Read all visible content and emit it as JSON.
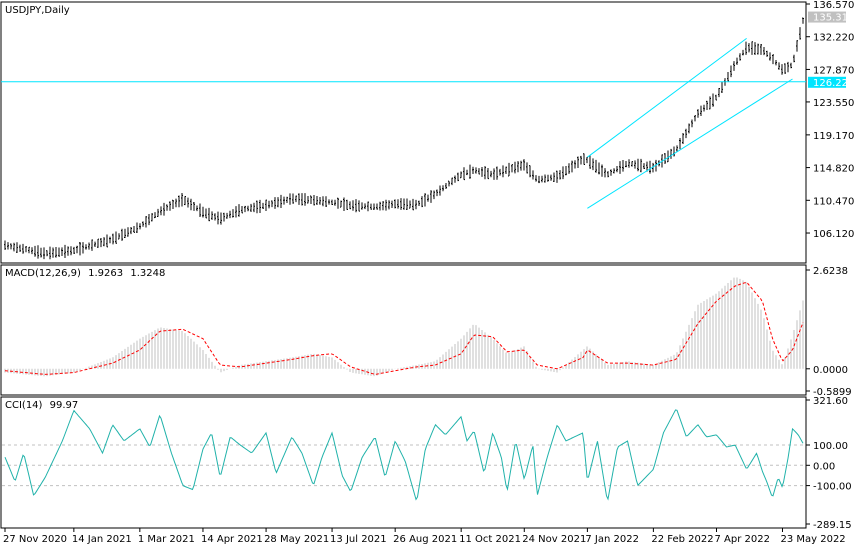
{
  "colors": {
    "background": "#ffffff",
    "frame": "#000000",
    "bar": "#000000",
    "hline": "#00e5ff",
    "channel": "#00e5ff",
    "price_label_bg": "#c0c0c0",
    "price_label_text": "#ffffff",
    "hline_label_bg": "#00e5ff",
    "macd_hist": "#c0c0c0",
    "macd_signal": "#ff0000",
    "cci_line": "#20b2aa",
    "cci_levels": "#c0c0c0"
  },
  "chart_data": [
    {
      "type": "line",
      "panel": "price",
      "title": "USDJPY,Daily",
      "symbol": "USDJPY",
      "timeframe": "Daily",
      "last_price_label": "135.312",
      "hline_label": "126.227",
      "hline_value": 126.227,
      "ylim": [
        102.4,
        136.57
      ],
      "yticks": [
        {
          "value": 136.57,
          "label": "136.570"
        },
        {
          "value": 132.22,
          "label": "132.220"
        },
        {
          "value": 127.87,
          "label": "127.870"
        },
        {
          "value": 123.55,
          "label": "123.550"
        },
        {
          "value": 119.17,
          "label": "119.170"
        },
        {
          "value": 114.82,
          "label": "114.820"
        },
        {
          "value": 110.47,
          "label": "110.470"
        },
        {
          "value": 106.12,
          "label": "106.120"
        }
      ],
      "x": [
        "2020-11-27",
        "2020-12-10",
        "2020-12-25",
        "2021-01-14",
        "2021-02-10",
        "2021-03-01",
        "2021-03-15",
        "2021-03-31",
        "2021-04-14",
        "2021-04-26",
        "2021-05-10",
        "2021-05-28",
        "2021-06-15",
        "2021-06-30",
        "2021-07-13",
        "2021-07-26",
        "2021-08-12",
        "2021-08-26",
        "2021-09-10",
        "2021-09-23",
        "2021-10-11",
        "2021-10-20",
        "2021-11-02",
        "2021-11-12",
        "2021-11-24",
        "2021-12-03",
        "2021-12-17",
        "2022-01-04",
        "2022-01-07",
        "2022-01-21",
        "2022-02-04",
        "2022-02-22",
        "2022-03-10",
        "2022-03-25",
        "2022-04-07",
        "2022-04-20",
        "2022-04-28",
        "2022-05-09",
        "2022-05-16",
        "2022-05-23",
        "2022-05-30",
        "2022-06-07"
      ],
      "values": [
        104.5,
        104.0,
        103.4,
        103.8,
        105.3,
        107.0,
        109.0,
        110.6,
        108.9,
        108.0,
        109.2,
        109.8,
        110.7,
        110.5,
        110.2,
        109.8,
        109.6,
        110.0,
        109.9,
        111.3,
        113.9,
        114.5,
        113.9,
        114.5,
        115.2,
        113.2,
        113.6,
        116.0,
        115.8,
        113.9,
        115.4,
        114.8,
        117.2,
        122.0,
        124.2,
        128.6,
        130.8,
        130.5,
        129.3,
        127.8,
        128.5,
        134.9
      ],
      "hline": 126.227,
      "channel": {
        "upper": {
          "from": [
            "2022-01-07",
            116.2
          ],
          "to": [
            "2022-04-28",
            132.0
          ]
        },
        "lower": {
          "from": [
            "2022-01-07",
            109.4
          ],
          "to": [
            "2022-05-30",
            126.6
          ]
        }
      }
    },
    {
      "type": "bar",
      "panel": "macd",
      "title": "MACD(12,26,9)",
      "macd_value": "1.9263",
      "signal_value": "1.3248",
      "ylim": [
        -0.5899,
        2.6238
      ],
      "yticks": [
        {
          "value": 2.6238,
          "label": "2.6238"
        },
        {
          "value": 0.0,
          "label": "0.0000"
        },
        {
          "value": -0.5899,
          "label": "-0.5899"
        }
      ],
      "x": [
        "2020-11-27",
        "2020-12-25",
        "2021-01-14",
        "2021-02-10",
        "2021-03-01",
        "2021-03-15",
        "2021-03-31",
        "2021-04-14",
        "2021-04-26",
        "2021-05-10",
        "2021-05-28",
        "2021-06-15",
        "2021-06-30",
        "2021-07-13",
        "2021-07-26",
        "2021-08-12",
        "2021-08-26",
        "2021-09-10",
        "2021-09-23",
        "2021-10-11",
        "2021-10-20",
        "2021-11-02",
        "2021-11-12",
        "2021-11-24",
        "2021-12-03",
        "2021-12-17",
        "2022-01-04",
        "2022-01-07",
        "2022-01-21",
        "2022-02-04",
        "2022-02-22",
        "2022-03-10",
        "2022-03-25",
        "2022-04-07",
        "2022-04-20",
        "2022-04-28",
        "2022-05-09",
        "2022-05-16",
        "2022-05-23",
        "2022-05-30",
        "2022-06-07"
      ],
      "series": [
        {
          "kind": "histogram",
          "values": [
            -0.1,
            -0.2,
            -0.1,
            0.3,
            0.8,
            1.1,
            1.0,
            0.5,
            -0.1,
            0.1,
            0.2,
            0.3,
            0.4,
            0.3,
            -0.1,
            -0.2,
            0.0,
            0.1,
            0.2,
            0.8,
            1.2,
            0.8,
            0.4,
            0.6,
            0.0,
            -0.1,
            0.5,
            0.6,
            0.1,
            0.2,
            0.1,
            0.4,
            1.7,
            2.0,
            2.45,
            2.3,
            1.5,
            0.5,
            0.1,
            0.9,
            1.9
          ]
        },
        {
          "kind": "signal",
          "values": [
            -0.05,
            -0.15,
            -0.1,
            0.15,
            0.5,
            1.0,
            1.05,
            0.8,
            0.1,
            0.05,
            0.15,
            0.25,
            0.35,
            0.4,
            0.05,
            -0.15,
            -0.05,
            0.05,
            0.1,
            0.4,
            0.9,
            0.85,
            0.45,
            0.5,
            0.1,
            0.0,
            0.3,
            0.5,
            0.15,
            0.15,
            0.1,
            0.25,
            1.2,
            1.8,
            2.2,
            2.3,
            1.8,
            0.8,
            0.2,
            0.5,
            1.3
          ]
        }
      ]
    },
    {
      "type": "line",
      "panel": "cci",
      "title": "CCI(14)",
      "cci_value": "99.97",
      "ylim": [
        -289.15,
        321.6
      ],
      "yticks": [
        {
          "value": 321.6,
          "label": "321.60"
        },
        {
          "value": 100,
          "label": "100.00"
        },
        {
          "value": 0,
          "label": "0.00"
        },
        {
          "value": -100,
          "label": "-100.00"
        },
        {
          "value": -289.15,
          "label": "-289.15"
        }
      ],
      "levels": [
        100,
        0,
        -100
      ],
      "x": [
        "2020-11-27",
        "2020-12-04",
        "2020-12-10",
        "2020-12-17",
        "2020-12-25",
        "2021-01-06",
        "2021-01-14",
        "2021-01-25",
        "2021-02-03",
        "2021-02-10",
        "2021-02-18",
        "2021-03-01",
        "2021-03-08",
        "2021-03-15",
        "2021-03-23",
        "2021-03-31",
        "2021-04-07",
        "2021-04-14",
        "2021-04-20",
        "2021-04-26",
        "2021-05-03",
        "2021-05-10",
        "2021-05-18",
        "2021-05-28",
        "2021-06-04",
        "2021-06-15",
        "2021-06-22",
        "2021-06-30",
        "2021-07-06",
        "2021-07-13",
        "2021-07-20",
        "2021-07-26",
        "2021-08-03",
        "2021-08-12",
        "2021-08-19",
        "2021-08-26",
        "2021-09-02",
        "2021-09-10",
        "2021-09-16",
        "2021-09-23",
        "2021-09-30",
        "2021-10-11",
        "2021-10-15",
        "2021-10-20",
        "2021-10-27",
        "2021-11-02",
        "2021-11-08",
        "2021-11-12",
        "2021-11-18",
        "2021-11-24",
        "2021-11-30",
        "2021-12-03",
        "2021-12-10",
        "2021-12-17",
        "2021-12-23",
        "2022-01-04",
        "2022-01-07",
        "2022-01-14",
        "2022-01-21",
        "2022-01-28",
        "2022-02-04",
        "2022-02-11",
        "2022-02-22",
        "2022-03-01",
        "2022-03-10",
        "2022-03-17",
        "2022-03-25",
        "2022-03-31",
        "2022-04-07",
        "2022-04-14",
        "2022-04-20",
        "2022-04-28",
        "2022-05-05",
        "2022-05-09",
        "2022-05-12",
        "2022-05-16",
        "2022-05-20",
        "2022-05-23",
        "2022-05-27",
        "2022-05-30",
        "2022-06-03",
        "2022-06-07"
      ],
      "values": [
        40,
        -80,
        60,
        -150,
        -60,
        120,
        270,
        180,
        60,
        200,
        120,
        180,
        90,
        250,
        60,
        -100,
        -120,
        80,
        160,
        -60,
        140,
        100,
        60,
        160,
        -40,
        140,
        60,
        -100,
        40,
        160,
        -50,
        -130,
        40,
        140,
        -60,
        120,
        20,
        -180,
        80,
        200,
        150,
        240,
        120,
        170,
        -40,
        160,
        40,
        -130,
        120,
        -70,
        100,
        -150,
        40,
        200,
        120,
        160,
        -80,
        120,
        -180,
        90,
        120,
        -100,
        -20,
        160,
        280,
        140,
        200,
        140,
        150,
        90,
        100,
        -20,
        60,
        -30,
        -80,
        -160,
        -60,
        -110,
        40,
        180,
        150,
        99.97
      ]
    }
  ],
  "x_axis": {
    "labels": [
      "27 Nov 2020",
      "14 Jan 2021",
      "1 Mar 2021",
      "14 Apr 2021",
      "28 May 2021",
      "13 Jul 2021",
      "26 Aug 2021",
      "11 Oct 2021",
      "24 Nov 2021",
      "7 Jan 2022",
      "22 Feb 2022",
      "7 Apr 2022",
      "23 May 2022"
    ],
    "label_dates": [
      "2020-11-27",
      "2021-01-14",
      "2021-03-01",
      "2021-04-14",
      "2021-05-28",
      "2021-07-13",
      "2021-08-26",
      "2021-10-11",
      "2021-11-24",
      "2022-01-07",
      "2022-02-22",
      "2022-04-07",
      "2022-05-23"
    ]
  }
}
